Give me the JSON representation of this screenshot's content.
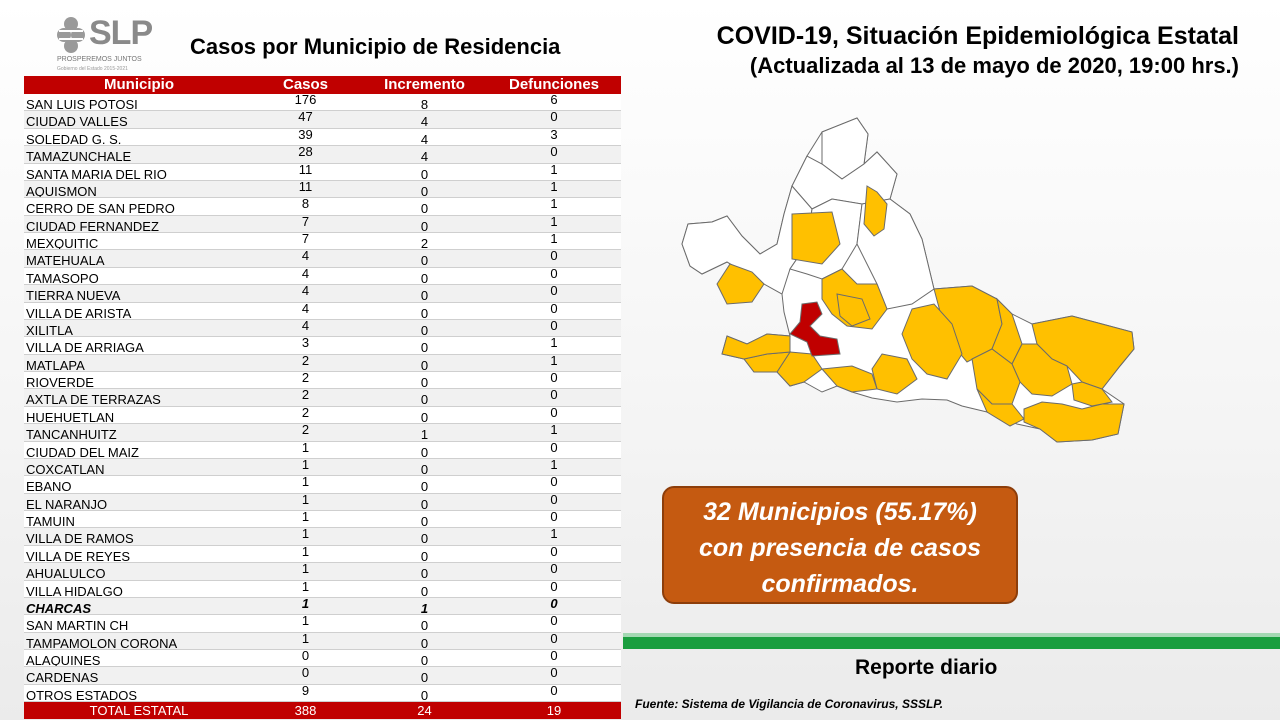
{
  "logo": {
    "brand": "SLP",
    "tagline": "PROSPEREMOS JUNTOS",
    "subtagline": "Gobierno del Estado 2015-2021"
  },
  "table_title": "Casos por Municipio  de Residencia",
  "main_title": {
    "line1": "COVID-19, Situación Epidemiológica Estatal",
    "line2": "(Actualizada al 13 de mayo de 2020, 19:00 hrs.)"
  },
  "table": {
    "headers": {
      "municipio": "Municipio",
      "casos": "Casos",
      "incremento": "Incremento",
      "defunciones": "Defunciones"
    },
    "rows": [
      {
        "municipio": "SAN LUIS POTOSI",
        "casos": "176",
        "incremento": "8",
        "defunciones": "6"
      },
      {
        "municipio": "CIUDAD  VALLES",
        "casos": "47",
        "incremento": "4",
        "defunciones": "0"
      },
      {
        "municipio": "SOLEDAD G. S.",
        "casos": "39",
        "incremento": "4",
        "defunciones": "3"
      },
      {
        "municipio": "TAMAZUNCHALE",
        "casos": "28",
        "incremento": "4",
        "defunciones": "0"
      },
      {
        "municipio": "SANTA MARIA  DEL RIO",
        "casos": "11",
        "incremento": "0",
        "defunciones": "1"
      },
      {
        "municipio": "AQUISMON",
        "casos": "11",
        "incremento": "0",
        "defunciones": "1"
      },
      {
        "municipio": "CERRO DE SAN PEDRO",
        "casos": "8",
        "incremento": "0",
        "defunciones": "1"
      },
      {
        "municipio": "CIUDAD  FERNANDEZ",
        "casos": "7",
        "incremento": "0",
        "defunciones": "1"
      },
      {
        "municipio": "MEXQUITIC",
        "casos": "7",
        "incremento": "2",
        "defunciones": "1"
      },
      {
        "municipio": "MATEHUALA",
        "casos": "4",
        "incremento": "0",
        "defunciones": "0"
      },
      {
        "municipio": "TAMASOPO",
        "casos": "4",
        "incremento": "0",
        "defunciones": "0"
      },
      {
        "municipio": "TIERRA NUEVA",
        "casos": "4",
        "incremento": "0",
        "defunciones": "0"
      },
      {
        "municipio": "VILLA DE ARISTA",
        "casos": "4",
        "incremento": "0",
        "defunciones": "0"
      },
      {
        "municipio": "XILITLA",
        "casos": "4",
        "incremento": "0",
        "defunciones": "0"
      },
      {
        "municipio": "VILLA DE ARRIAGA",
        "casos": "3",
        "incremento": "0",
        "defunciones": "1"
      },
      {
        "municipio": "MATLAPA",
        "casos": "2",
        "incremento": "0",
        "defunciones": "1"
      },
      {
        "municipio": "RIOVERDE",
        "casos": "2",
        "incremento": "0",
        "defunciones": "0"
      },
      {
        "municipio": "AXTLA DE TERRAZAS",
        "casos": "2",
        "incremento": "0",
        "defunciones": "0"
      },
      {
        "municipio": "HUEHUETLAN",
        "casos": "2",
        "incremento": "0",
        "defunciones": "0"
      },
      {
        "municipio": "TANCANHUITZ",
        "casos": "2",
        "incremento": "1",
        "defunciones": "1"
      },
      {
        "municipio": "CIUDAD  DEL MAIZ",
        "casos": "1",
        "incremento": "0",
        "defunciones": "0"
      },
      {
        "municipio": "COXCATLAN",
        "casos": "1",
        "incremento": "0",
        "defunciones": "1"
      },
      {
        "municipio": "EBANO",
        "casos": "1",
        "incremento": "0",
        "defunciones": "0"
      },
      {
        "municipio": "EL NARANJO",
        "casos": "1",
        "incremento": "0",
        "defunciones": "0"
      },
      {
        "municipio": "TAMUIN",
        "casos": "1",
        "incremento": "0",
        "defunciones": "0"
      },
      {
        "municipio": "VILLA DE RAMOS",
        "casos": "1",
        "incremento": "0",
        "defunciones": "1"
      },
      {
        "municipio": "VILLA DE REYES",
        "casos": "1",
        "incremento": "0",
        "defunciones": "0"
      },
      {
        "municipio": "AHUALULCO",
        "casos": "1",
        "incremento": "0",
        "defunciones": "0"
      },
      {
        "municipio": "VILLA HIDALGO",
        "casos": "1",
        "incremento": "0",
        "defunciones": "0"
      },
      {
        "municipio": "CHARCAS",
        "casos": "1",
        "incremento": "1",
        "defunciones": "0",
        "bold": true
      },
      {
        "municipio": "SAN MARTIN CH",
        "casos": "1",
        "incremento": "0",
        "defunciones": "0"
      },
      {
        "municipio": "TAMPAMOLON  CORONA",
        "casos": "1",
        "incremento": "0",
        "defunciones": "0"
      },
      {
        "municipio": "ALAQUINES",
        "casos": "0",
        "incremento": "0",
        "defunciones": "0"
      },
      {
        "municipio": "CARDENAS",
        "casos": "0",
        "incremento": "0",
        "defunciones": "0"
      },
      {
        "municipio": "OTROS ESTADOS",
        "casos": "9",
        "incremento": "0",
        "defunciones": "0"
      }
    ],
    "total": {
      "municipio": "TOTAL ESTATAL",
      "casos": "388",
      "incremento": "24",
      "defunciones": "19"
    }
  },
  "map": {
    "colors": {
      "with_cases": "#ffc000",
      "new": "#c00000",
      "no_cases": "#ffffff",
      "border": "#6b6b6b"
    }
  },
  "callout": {
    "line1": "32 Municipios (55.17%)",
    "line2": "con presencia de casos",
    "line3": "confirmados."
  },
  "report_label": "Reporte diario",
  "source": "Fuente: Sistema de Vigilancia de Coronavirus, SSSLP."
}
